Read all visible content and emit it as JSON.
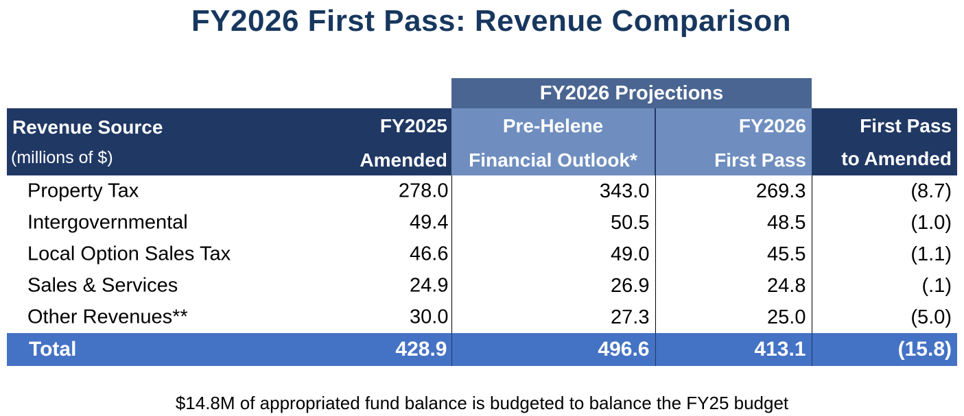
{
  "title": "FY2026 First Pass: Revenue Comparison",
  "group_header": "FY2026 Projections",
  "columns": {
    "source_title": "Revenue Source",
    "source_subtitle": "(millions of $)",
    "fy2025_line1": "FY2025",
    "fy2025_line2": "Amended",
    "prehelene_line1": "Pre-Helene",
    "prehelene_line2": "Financial Outlook*",
    "firstpass_line1": "FY2026",
    "firstpass_line2": "First Pass",
    "diff_line1": "First Pass",
    "diff_line2": "to Amended"
  },
  "rows": [
    {
      "source": "Property Tax",
      "fy2025": "278.0",
      "prehelene": "343.0",
      "firstpass": "269.3",
      "diff": "(8.7)"
    },
    {
      "source": "Intergovernmental",
      "fy2025": "49.4",
      "prehelene": "50.5",
      "firstpass": "48.5",
      "diff": "(1.0)"
    },
    {
      "source": "Local Option Sales Tax",
      "fy2025": "46.6",
      "prehelene": "49.0",
      "firstpass": "45.5",
      "diff": "(1.1)"
    },
    {
      "source": "Sales & Services",
      "fy2025": "24.9",
      "prehelene": "26.9",
      "firstpass": "24.8",
      "diff": "(.1)"
    },
    {
      "source": "Other Revenues**",
      "fy2025": "30.0",
      "prehelene": "27.3",
      "firstpass": "25.0",
      "diff": "(5.0)"
    }
  ],
  "total": {
    "source": "Total",
    "fy2025": "428.9",
    "prehelene": "496.6",
    "firstpass": "413.1",
    "diff": "(15.8)"
  },
  "footnote": "$14.8M of appropriated fund balance is budgeted to balance the FY25 budget",
  "colors": {
    "title": "#17375e",
    "header_dark": "#203864",
    "header_light": "#6f8ebf",
    "group_header": "#4a6591",
    "total_row": "#4472c4"
  }
}
